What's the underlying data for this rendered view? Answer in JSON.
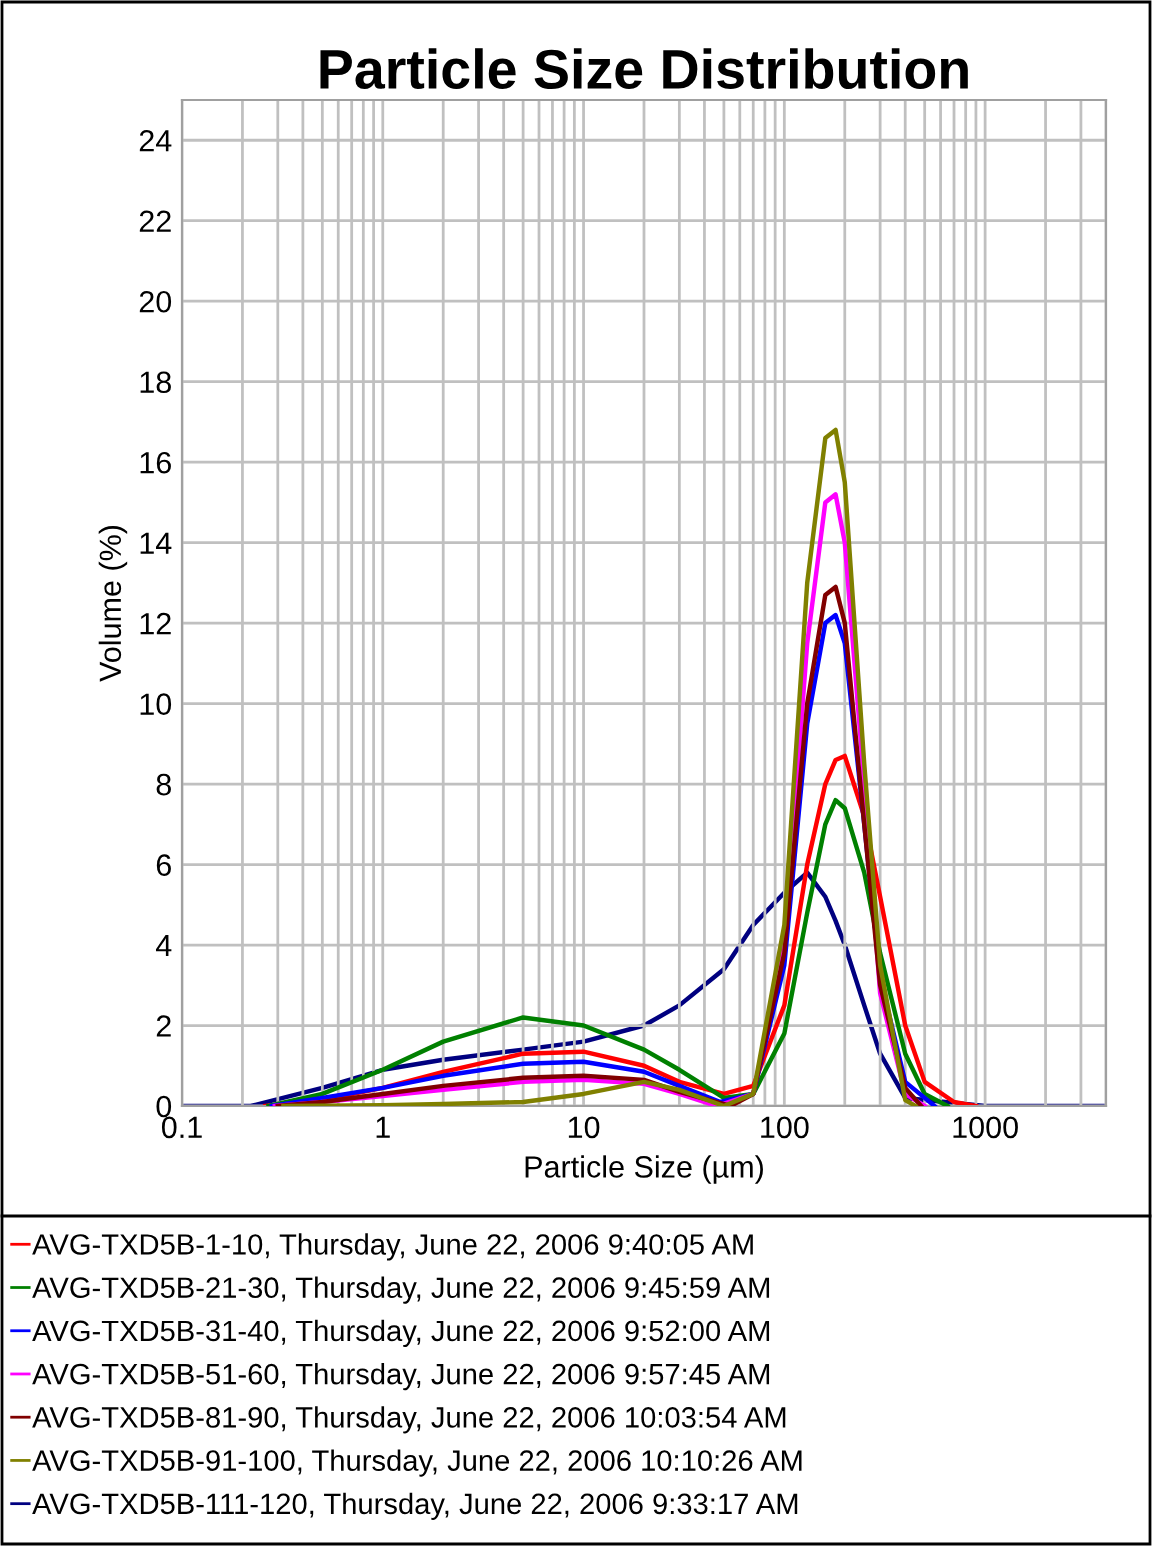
{
  "chart_data": {
    "type": "line",
    "title": "Particle Size Distribution",
    "xlabel": "Particle Size (µm)",
    "ylabel": "Volume (%)",
    "log": "x",
    "series": [
      {
        "name": "AVG-TXD5B-1-10, Thursday, June 22, 2006 9:40:05 AM",
        "color": "#ff0000",
        "x": [
          0.26,
          0.5,
          1,
          2,
          5,
          10,
          20,
          30,
          50,
          70,
          100,
          130,
          160,
          180,
          200,
          250,
          300,
          400,
          500,
          700,
          900
        ],
        "values": [
          0,
          0.15,
          0.45,
          0.85,
          1.3,
          1.35,
          1.0,
          0.6,
          0.3,
          0.5,
          2.5,
          6.0,
          8.0,
          8.6,
          8.7,
          7.2,
          5.2,
          2.0,
          0.6,
          0.1,
          0
        ]
      },
      {
        "name": "AVG-TXD5B-21-30, Thursday, June 22, 2006 9:45:59 AM",
        "color": "#008000",
        "x": [
          0.27,
          0.5,
          1,
          2,
          5,
          10,
          20,
          30,
          50,
          70,
          100,
          130,
          160,
          180,
          200,
          250,
          300,
          400,
          500,
          650
        ],
        "values": [
          0,
          0.3,
          0.9,
          1.6,
          2.2,
          2.0,
          1.4,
          0.9,
          0.2,
          0.3,
          1.8,
          4.8,
          7.0,
          7.6,
          7.4,
          5.8,
          3.8,
          1.3,
          0.3,
          0
        ]
      },
      {
        "name": "AVG-TXD5B-31-40, Thursday, June 22, 2006 9:52:00 AM",
        "color": "#0000ff",
        "x": [
          0.28,
          0.5,
          1,
          2,
          5,
          10,
          20,
          30,
          48,
          70,
          100,
          130,
          160,
          180,
          200,
          250,
          300,
          400,
          560
        ],
        "values": [
          0,
          0.2,
          0.45,
          0.75,
          1.05,
          1.1,
          0.85,
          0.5,
          0.1,
          0.3,
          3.5,
          9.5,
          12.0,
          12.2,
          11.5,
          7.0,
          3.2,
          0.6,
          0
        ]
      },
      {
        "name": "AVG-TXD5B-51-60, Thursday, June 22, 2006 9:57:45 AM",
        "color": "#ff00ff",
        "x": [
          0.29,
          0.5,
          1,
          2,
          5,
          10,
          20,
          30,
          46,
          70,
          100,
          130,
          160,
          180,
          200,
          250,
          300,
          400,
          500
        ],
        "values": [
          0,
          0.1,
          0.25,
          0.4,
          0.6,
          0.65,
          0.55,
          0.3,
          0,
          0.3,
          4.0,
          11.5,
          15.0,
          15.2,
          14.0,
          8.0,
          2.8,
          0.3,
          0
        ]
      },
      {
        "name": "AVG-TXD5B-81-90, Thursday, June 22, 2006 10:03:54 AM",
        "color": "#800000",
        "x": [
          0.3,
          0.5,
          1,
          2,
          5,
          10,
          20,
          30,
          54,
          70,
          100,
          130,
          160,
          180,
          200,
          250,
          300,
          400,
          480
        ],
        "values": [
          0,
          0.1,
          0.3,
          0.5,
          0.7,
          0.75,
          0.65,
          0.35,
          0,
          0.3,
          3.8,
          10.0,
          12.7,
          12.9,
          12.0,
          7.0,
          3.0,
          0.45,
          0
        ]
      },
      {
        "name": "AVG-TXD5B-91-100, Thursday, June 22, 2006 10:10:26 AM",
        "color": "#808000",
        "x": [
          0.32,
          1,
          2,
          5,
          10,
          20,
          30,
          50,
          70,
          100,
          130,
          160,
          180,
          200,
          250,
          300,
          400,
          450
        ],
        "values": [
          0,
          0.02,
          0.05,
          0.1,
          0.3,
          0.6,
          0.4,
          0,
          0.3,
          4.5,
          13.0,
          16.6,
          16.8,
          15.5,
          8.5,
          3.5,
          0.15,
          0
        ]
      },
      {
        "name": "AVG-TXD5B-111-120, Thursday, June 22, 2006 9:33:17 AM",
        "color": "#000080",
        "x": [
          0.1,
          0.22,
          0.5,
          1,
          2,
          5,
          10,
          20,
          30,
          50,
          70,
          100,
          130,
          160,
          180,
          200,
          250,
          300,
          400,
          1000,
          4000
        ],
        "values": [
          0,
          0,
          0.45,
          0.9,
          1.15,
          1.4,
          1.6,
          2.0,
          2.5,
          3.4,
          4.5,
          5.3,
          5.8,
          5.2,
          4.6,
          4.0,
          2.5,
          1.3,
          0.2,
          0,
          0
        ]
      }
    ],
    "xlim": [
      0.1,
      4000
    ],
    "xticks": [
      {
        "value": 0.1,
        "label": "0.1"
      },
      1,
      10,
      100,
      1000
    ],
    "ylim": [
      0,
      25
    ],
    "yticks": [
      0,
      2,
      4,
      6,
      8,
      10,
      12,
      14,
      16,
      18,
      20,
      22,
      24
    ],
    "grid": true,
    "legend": "bottom",
    "marker": "none",
    "line_style": "solid"
  }
}
